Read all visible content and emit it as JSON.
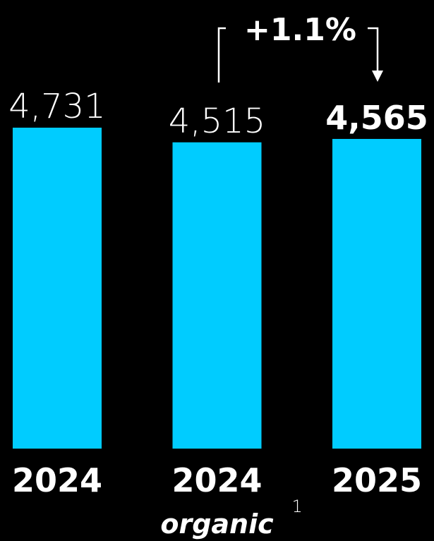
{
  "chart_data": {
    "type": "bar",
    "categories": [
      "2024",
      "2024",
      "2025"
    ],
    "category_sublabels": [
      "",
      "organic",
      ""
    ],
    "category_footnotes": [
      "",
      "1",
      ""
    ],
    "values": [
      4731,
      4515,
      4565
    ],
    "value_labels": [
      "4,731",
      "4,515",
      "4,565"
    ],
    "highlighted_index": 2,
    "bar_color": "#00CCFF",
    "background_color": "#000000",
    "annotation": {
      "text": "+1.1%",
      "from_index": 1,
      "to_index": 2
    },
    "ylim": [
      0,
      4731
    ],
    "grid": false,
    "legend": "none"
  }
}
